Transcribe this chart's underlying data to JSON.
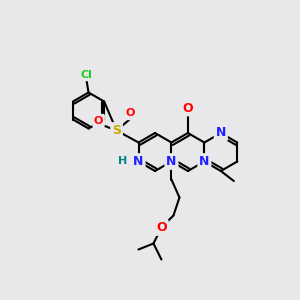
{
  "background_color": "#e8e8eb",
  "bond_color": "#000000",
  "atom_colors": {
    "N": "#2020ff",
    "O": "#ff0000",
    "S": "#ccaa00",
    "Cl": "#22cc22",
    "NH_H": "#008888",
    "C": "#000000"
  },
  "figsize": [
    3.0,
    3.0
  ],
  "dpi": 100
}
